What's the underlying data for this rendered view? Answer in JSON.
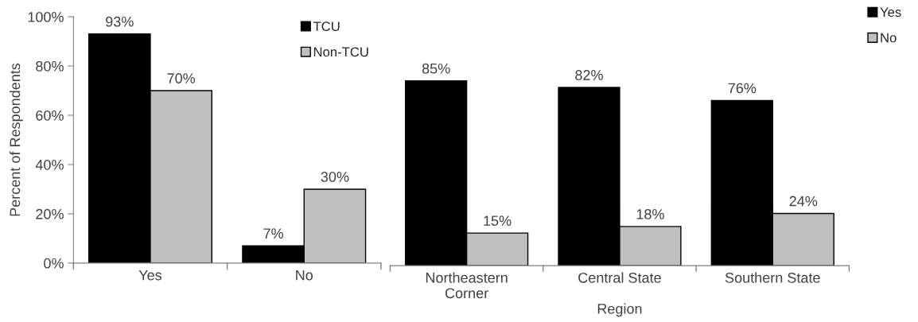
{
  "chart_data": [
    {
      "type": "bar",
      "categories": [
        "Yes",
        "No"
      ],
      "ylabel": "Percent of Respondents",
      "ylim": [
        0,
        100
      ],
      "yticks": [
        {
          "value": 0,
          "label": "0%"
        },
        {
          "value": 20,
          "label": "20%"
        },
        {
          "value": 40,
          "label": "40%"
        },
        {
          "value": 60,
          "label": "60%"
        },
        {
          "value": 80,
          "label": "80%"
        },
        {
          "value": 100,
          "label": "100%"
        }
      ],
      "series": [
        {
          "name": "TCU",
          "color": "#000000",
          "values": [
            93,
            7
          ],
          "value_labels": [
            "93%",
            "7%"
          ]
        },
        {
          "name": "Non-TCU",
          "color": "#bfbfbf",
          "values": [
            70,
            30
          ],
          "value_labels": [
            "70%",
            "30%"
          ]
        }
      ],
      "legend": "top right",
      "grid": false
    },
    {
      "type": "bar",
      "categories": [
        "Northeastern\nCorner",
        "Central State",
        "Southern State"
      ],
      "xlabel": "Region",
      "tick_labels": "x",
      "series": [
        {
          "name": "Yes",
          "color": "#000000",
          "values": [
            85,
            82,
            76
          ],
          "value_labels": [
            "85%",
            "82%",
            "76%"
          ]
        },
        {
          "name": "No",
          "color": "#bfbfbf",
          "values": [
            15,
            18,
            24
          ],
          "value_labels": [
            "15%",
            "18%",
            "24%"
          ]
        }
      ],
      "legend": "top right",
      "grid": false
    }
  ]
}
